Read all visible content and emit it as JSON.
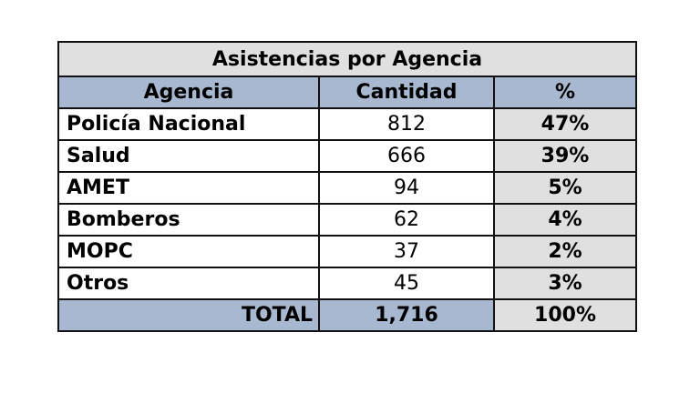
{
  "chart_data": {
    "type": "table",
    "title": "Asistencias por Agencia",
    "columns": [
      "Agencia",
      "Cantidad",
      "%"
    ],
    "rows": [
      {
        "agencia": "Policía Nacional",
        "cantidad": "812",
        "pct": "47%"
      },
      {
        "agencia": "Salud",
        "cantidad": "666",
        "pct": "39%"
      },
      {
        "agencia": "AMET",
        "cantidad": "94",
        "pct": "5%"
      },
      {
        "agencia": "Bomberos",
        "cantidad": "62",
        "pct": "4%"
      },
      {
        "agencia": "MOPC",
        "cantidad": "37",
        "pct": "2%"
      },
      {
        "agencia": "Otros",
        "cantidad": "45",
        "pct": "3%"
      }
    ],
    "total": {
      "label": "TOTAL",
      "cantidad": "1,716",
      "pct": "100%"
    }
  },
  "colors": {
    "header_fill": "#a8b8d0",
    "title_fill": "#e0e0e0",
    "pct_fill": "#e0e0e0",
    "border": "#111111"
  }
}
